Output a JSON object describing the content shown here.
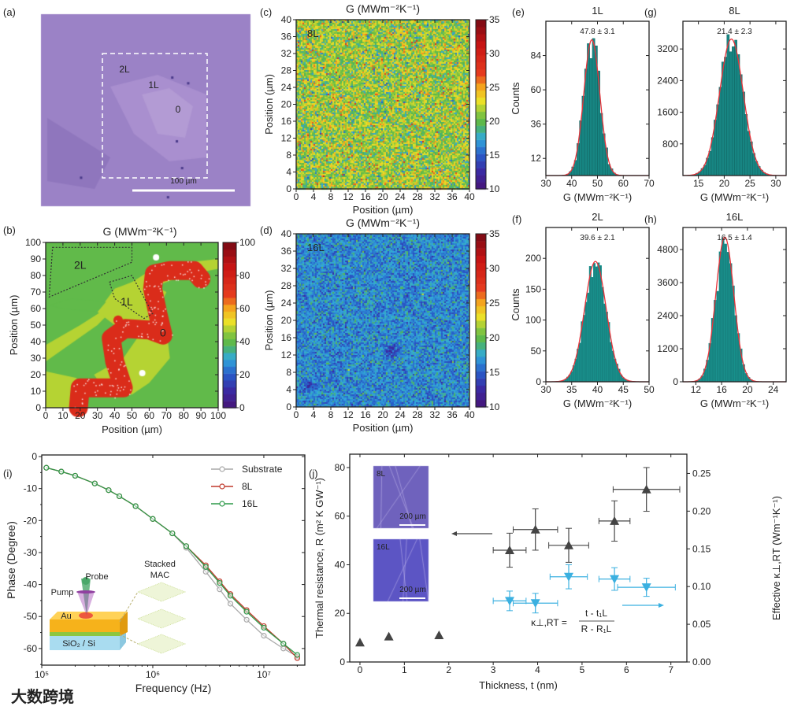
{
  "figure": {
    "panel_labels": [
      "(a)",
      "(b)",
      "(c)",
      "(d)",
      "(e)",
      "(f)",
      "(g)",
      "(h)",
      "(i)",
      "(j)"
    ],
    "watermark": "大数跨境"
  },
  "panel_a": {
    "labels": [
      "2L",
      "1L",
      "0"
    ],
    "scalebar": "100 µm"
  },
  "chart_data": [
    {
      "panel": "b",
      "type": "heatmap",
      "title": "G (MWm⁻²K⁻¹)",
      "xlabel": "Position (µm)",
      "ylabel": "Position (µm)",
      "xlim": [
        0,
        100
      ],
      "ylim": [
        0,
        100
      ],
      "xticks": [
        0,
        10,
        20,
        30,
        40,
        50,
        60,
        70,
        80,
        90,
        100
      ],
      "yticks": [
        0,
        10,
        20,
        30,
        40,
        50,
        60,
        70,
        80,
        90,
        100
      ],
      "colorbar": {
        "range": [
          0,
          100
        ],
        "ticks": [
          0,
          20,
          40,
          60,
          80,
          100
        ]
      },
      "annotations": [
        "2L",
        "1L",
        "0"
      ],
      "region_values": {
        "substrate_0": 75,
        "1L": 48,
        "2L": 40
      }
    },
    {
      "panel": "c",
      "type": "heatmap",
      "title": "G (MWm⁻²K⁻¹)",
      "xlabel": "Position (µm)",
      "ylabel": "Position (µm)",
      "label": "8L",
      "xlim": [
        0,
        40
      ],
      "ylim": [
        0,
        40
      ],
      "xticks": [
        0,
        4,
        8,
        12,
        16,
        20,
        24,
        28,
        32,
        36,
        40
      ],
      "yticks": [
        0,
        4,
        8,
        12,
        16,
        20,
        24,
        28,
        32,
        36,
        40
      ],
      "colorbar": {
        "range": [
          10,
          35
        ],
        "ticks": [
          10,
          15,
          20,
          25,
          30,
          35
        ]
      },
      "mean": 21.4,
      "std": 2.3
    },
    {
      "panel": "d",
      "type": "heatmap",
      "title": "G (MWm⁻²K⁻¹)",
      "xlabel": "Position (µm)",
      "ylabel": "Position (µm)",
      "label": "16L",
      "xlim": [
        0,
        40
      ],
      "ylim": [
        0,
        40
      ],
      "xticks": [
        0,
        4,
        8,
        12,
        16,
        20,
        24,
        28,
        32,
        36,
        40
      ],
      "yticks": [
        0,
        4,
        8,
        12,
        16,
        20,
        24,
        28,
        32,
        36,
        40
      ],
      "colorbar": {
        "range": [
          10,
          35
        ],
        "ticks": [
          10,
          15,
          20,
          25,
          30,
          35
        ]
      },
      "mean": 16.5,
      "std": 1.4
    },
    {
      "panel": "e",
      "type": "bar",
      "title": "1L",
      "annotation": "47.8 ± 3.1",
      "mean": 47.8,
      "std": 3.1,
      "peak": 95,
      "bin_width": 1,
      "xlabel": "G (MWm⁻²K⁻¹)",
      "ylabel": "Counts",
      "xlim": [
        30,
        70
      ],
      "xticks": [
        30,
        40,
        50,
        60,
        70
      ],
      "ylim": [
        0,
        108
      ],
      "yticks": [
        12,
        36,
        60,
        84
      ]
    },
    {
      "panel": "f",
      "type": "bar",
      "title": "2L",
      "annotation": "39.6 ± 2.1",
      "mean": 39.6,
      "std": 2.1,
      "peak": 195,
      "bin_width": 0.4,
      "xlabel": "G (MWm⁻²K⁻¹)",
      "ylabel": "Counts",
      "xlim": [
        30,
        50
      ],
      "xticks": [
        30,
        35,
        40,
        45,
        50
      ],
      "ylim": [
        0,
        250
      ],
      "yticks": [
        0,
        50,
        100,
        150,
        200
      ]
    },
    {
      "panel": "g",
      "type": "bar",
      "title": "8L",
      "annotation": "21.4 ± 2.3",
      "mean": 21.4,
      "std": 2.3,
      "peak": 3450,
      "bin_width": 0.5,
      "xlabel": "G (MWm⁻²K⁻¹)",
      "ylabel": "",
      "xlim": [
        12,
        32
      ],
      "xticks": [
        15,
        20,
        25,
        30
      ],
      "ylim": [
        0,
        3900
      ],
      "yticks": [
        800,
        1600,
        2400,
        3200
      ]
    },
    {
      "panel": "h",
      "type": "bar",
      "title": "16L",
      "annotation": "16.5 ± 1.4",
      "mean": 16.5,
      "std": 1.4,
      "peak": 5250,
      "bin_width": 0.4,
      "xlabel": "G (MWm⁻²K⁻¹)",
      "ylabel": "",
      "xlim": [
        10,
        26
      ],
      "xticks": [
        12,
        16,
        20,
        24
      ],
      "ylim": [
        0,
        5600
      ],
      "yticks": [
        0,
        1200,
        2400,
        3600,
        4800
      ]
    },
    {
      "panel": "i",
      "type": "line",
      "xlabel": "Frequency (Hz)",
      "ylabel": "Phase (Degree)",
      "xscale": "log",
      "xlim": [
        100000,
        23400000
      ],
      "xticks": [
        100000,
        1000000,
        10000000
      ],
      "xticklabels": [
        "10⁵",
        "10⁶",
        "10⁷"
      ],
      "ylim": [
        -65.2,
        0.5
      ],
      "yticks": [
        0,
        -10,
        -20,
        -30,
        -40,
        -50,
        -60
      ],
      "legend": "top-right",
      "x": [
        110000,
        150000,
        200000,
        300000,
        400000,
        500000,
        700000,
        1000000,
        1500000,
        2000000,
        3000000,
        4000000,
        5000000,
        7000000,
        10000000,
        15000000,
        20000000
      ],
      "series": [
        {
          "name": "Substrate",
          "color": "#a9a9a9",
          "values": [
            -3.5,
            -4.7,
            -6,
            -8.4,
            -10.5,
            -12.4,
            -15.5,
            -19.5,
            -24,
            -28.5,
            -36,
            -41.5,
            -46,
            -51,
            -56,
            -60,
            -62.5
          ]
        },
        {
          "name": "8L",
          "color": "#c0392b",
          "values": [
            -3.5,
            -4.7,
            -6,
            -8.4,
            -10.5,
            -12.4,
            -15.5,
            -19.5,
            -24,
            -28,
            -34,
            -39,
            -43,
            -48,
            -53,
            -58.5,
            -63
          ]
        },
        {
          "name": "16L",
          "color": "#2e9a4a",
          "values": [
            -3.5,
            -4.7,
            -6,
            -8.4,
            -10.5,
            -12.4,
            -15.5,
            -19.5,
            -24,
            -28,
            -34.5,
            -39.5,
            -43.5,
            -48.5,
            -53.5,
            -58.5,
            -62
          ]
        }
      ],
      "inset_labels": [
        "Probe",
        "Pump",
        "Au",
        "SiO₂ / Si",
        "Stacked",
        "MAC"
      ]
    },
    {
      "panel": "j",
      "type": "scatter",
      "xlabel": "Thickness, t (nm)",
      "ylabel": "Thermal resistance, R (m² K GW⁻¹)",
      "y2label": "Effective κ⊥,RT (Wm⁻¹K⁻¹)",
      "xlim": [
        -0.23,
        7.36
      ],
      "xticks": [
        0,
        1,
        2,
        3,
        4,
        5,
        6,
        7
      ],
      "ylim": [
        0,
        85.5
      ],
      "yticks": [
        0,
        20,
        40,
        60,
        80
      ],
      "y2lim": [
        0,
        0.2755
      ],
      "y2ticks": [
        0,
        0.05,
        0.1,
        0.15,
        0.2,
        0.25
      ],
      "y2ticklabels": [
        "0.00",
        "0.05",
        "0.10",
        "0.15",
        "0.20",
        "0.25"
      ],
      "series": [
        {
          "name": "R",
          "axis": "left",
          "marker": "triangle-up",
          "color": "#444444",
          "points": [
            {
              "x": 0,
              "y": 8,
              "xerr": 0,
              "yerr": 0
            },
            {
              "x": 0.65,
              "y": 10.5,
              "xerr": 0,
              "yerr": 0
            },
            {
              "x": 1.78,
              "y": 11,
              "xerr": 0,
              "yerr": 0
            },
            {
              "x": 3.37,
              "y": 46,
              "xerr": 0.37,
              "yerr": 7
            },
            {
              "x": 3.95,
              "y": 54.5,
              "xerr": 0.5,
              "yerr": 8.5
            },
            {
              "x": 4.7,
              "y": 48,
              "xerr": 0.45,
              "yerr": 7
            },
            {
              "x": 5.73,
              "y": 58,
              "xerr": 0.35,
              "yerr": 8.3
            },
            {
              "x": 6.45,
              "y": 71,
              "xerr": 0.75,
              "yerr": 9
            }
          ]
        },
        {
          "name": "κ⊥,RT",
          "axis": "right",
          "marker": "triangle-down",
          "color": "#3bb0e0",
          "points": [
            {
              "x": 3.37,
              "y": 0.081,
              "xerr": 0.37,
              "yerr": 0.013
            },
            {
              "x": 3.95,
              "y": 0.078,
              "xerr": 0.5,
              "yerr": 0.013
            },
            {
              "x": 4.7,
              "y": 0.113,
              "xerr": 0.42,
              "yerr": 0.016
            },
            {
              "x": 5.73,
              "y": 0.11,
              "xerr": 0.35,
              "yerr": 0.015
            },
            {
              "x": 6.45,
              "y": 0.099,
              "xerr": 0.65,
              "yerr": 0.012
            }
          ]
        }
      ],
      "inset_labels": [
        "8L",
        "200 µm",
        "16L",
        "200 µm"
      ],
      "formula": {
        "lhs": "κ⊥,RT =",
        "numerator": "t - t₁L",
        "denominator": "R - R₁L"
      }
    }
  ]
}
